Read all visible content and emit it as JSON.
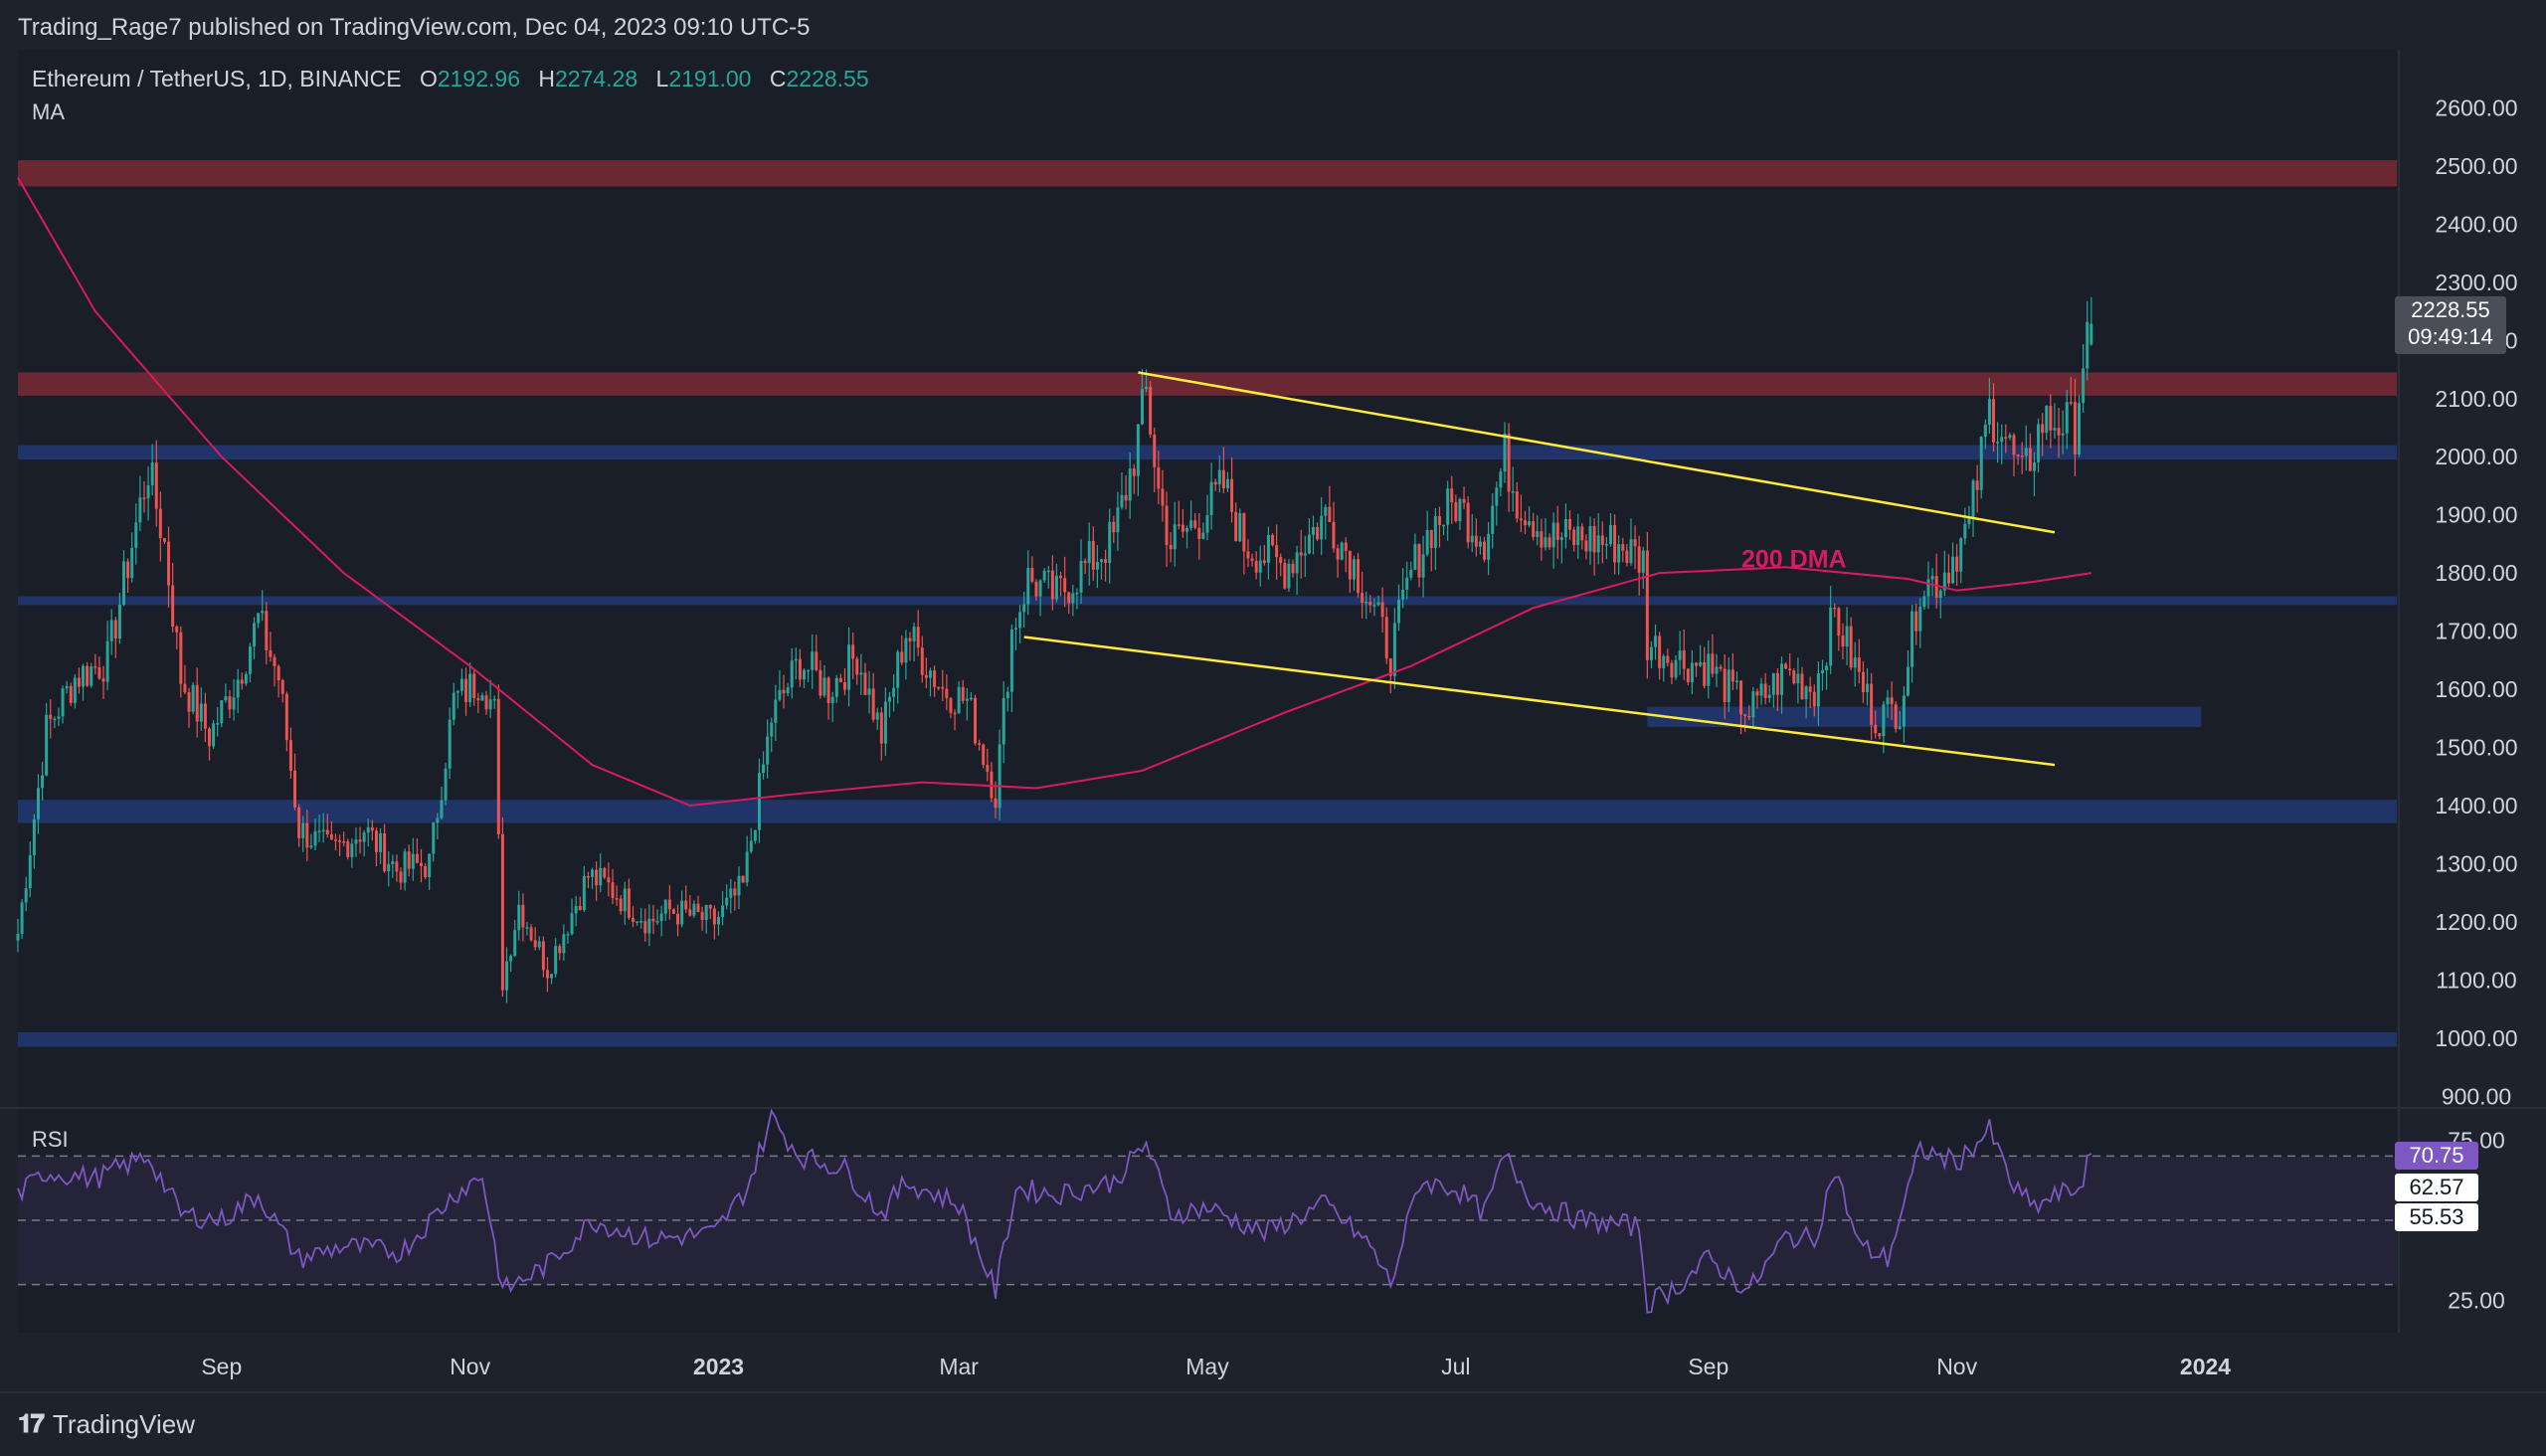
{
  "header": {
    "publisher": "Trading_Rage7 published on TradingView.com, Dec 04, 2023 09:10 UTC-5",
    "symbol": "Ethereum / TetherUS, 1D, BINANCE",
    "o_label": "O",
    "o_value": "2192.96",
    "h_label": "H",
    "h_value": "2274.28",
    "l_label": "L",
    "l_value": "2191.00",
    "c_label": "C",
    "c_value": "2228.55",
    "indicator": "MA"
  },
  "price_tag": {
    "price": "2228.55",
    "countdown": "09:49:14"
  },
  "annotation": {
    "label": "200 DMA"
  },
  "rsi": {
    "label": "RSI",
    "value": "70.75",
    "ma": "62.57",
    "other": "55.53"
  },
  "footer": {
    "brand": "TradingView",
    "logo": "tradingview-logo-icon"
  },
  "colors": {
    "background": "#1e222d",
    "up": "#26a69a",
    "down": "#ef5350",
    "ma": "#d81b60",
    "trendline": "#ffeb3b",
    "resistance_zone": "#7a2a35",
    "support_zone": "#22366a",
    "rsi_line": "#7e57c2"
  },
  "chart_data": [
    {
      "type": "candlestick",
      "title": "Ethereum / TetherUS, 1D, BINANCE",
      "y_axis_ticks": [
        2600,
        2500,
        2400,
        2300,
        2200,
        2100,
        2000,
        1900,
        1800,
        1700,
        1600,
        1500,
        1400,
        1300,
        1200,
        1100,
        1000,
        900
      ],
      "y_axis_tick_labels": [
        "2600.00",
        "2500.00",
        "2400.00",
        "2300.00",
        "2200.00",
        "2100.00",
        "2000.00",
        "1900.00",
        "1800.00",
        "1700.00",
        "1600.00",
        "1500.00",
        "1400.00",
        "1300.00",
        "1200.00",
        "1100.00",
        "1000.00",
        "900.00"
      ],
      "ylim": [
        880,
        2700
      ],
      "x_axis_ticks": [
        {
          "date": "2022-09-01",
          "label": "Sep"
        },
        {
          "date": "2022-11-01",
          "label": "Nov"
        },
        {
          "date": "2023-01-01",
          "label": "2023"
        },
        {
          "date": "2023-03-01",
          "label": "Mar"
        },
        {
          "date": "2023-05-01",
          "label": "May"
        },
        {
          "date": "2023-07-01",
          "label": "Jul"
        },
        {
          "date": "2023-09-01",
          "label": "Sep"
        },
        {
          "date": "2023-11-01",
          "label": "Nov"
        },
        {
          "date": "2024-01-01",
          "label": "2024"
        }
      ],
      "xlim": [
        "2022-07-13",
        "2024-02-17"
      ],
      "close_anchors": [
        [
          "2022-07-13",
          1180
        ],
        [
          "2022-07-20",
          1530
        ],
        [
          "2022-07-27",
          1620
        ],
        [
          "2022-08-04",
          1650
        ],
        [
          "2022-08-10",
          1850
        ],
        [
          "2022-08-14",
          1980
        ],
        [
          "2022-08-18",
          1850
        ],
        [
          "2022-08-22",
          1620
        ],
        [
          "2022-08-29",
          1520
        ],
        [
          "2022-09-05",
          1620
        ],
        [
          "2022-09-10",
          1720
        ],
        [
          "2022-09-15",
          1620
        ],
        [
          "2022-09-20",
          1360
        ],
        [
          "2022-09-28",
          1320
        ],
        [
          "2022-10-06",
          1360
        ],
        [
          "2022-10-14",
          1290
        ],
        [
          "2022-10-22",
          1300
        ],
        [
          "2022-10-28",
          1580
        ],
        [
          "2022-11-04",
          1620
        ],
        [
          "2022-11-07",
          1560
        ],
        [
          "2022-11-09",
          1100
        ],
        [
          "2022-11-13",
          1230
        ],
        [
          "2022-11-20",
          1120
        ],
        [
          "2022-11-30",
          1280
        ],
        [
          "2022-12-05",
          1260
        ],
        [
          "2022-12-15",
          1200
        ],
        [
          "2022-12-20",
          1220
        ],
        [
          "2022-12-31",
          1200
        ],
        [
          "2023-01-07",
          1260
        ],
        [
          "2023-01-14",
          1550
        ],
        [
          "2023-01-21",
          1650
        ],
        [
          "2023-01-28",
          1600
        ],
        [
          "2023-02-04",
          1660
        ],
        [
          "2023-02-10",
          1520
        ],
        [
          "2023-02-16",
          1700
        ],
        [
          "2023-02-25",
          1600
        ],
        [
          "2023-03-03",
          1580
        ],
        [
          "2023-03-10",
          1420
        ],
        [
          "2023-03-14",
          1700
        ],
        [
          "2023-03-18",
          1790
        ],
        [
          "2023-03-25",
          1760
        ],
        [
          "2023-04-01",
          1810
        ],
        [
          "2023-04-08",
          1860
        ],
        [
          "2023-04-13",
          2000
        ],
        [
          "2023-04-16",
          2110
        ],
        [
          "2023-04-19",
          1940
        ],
        [
          "2023-04-22",
          1850
        ],
        [
          "2023-04-30",
          1900
        ],
        [
          "2023-05-05",
          1950
        ],
        [
          "2023-05-10",
          1850
        ],
        [
          "2023-05-20",
          1810
        ],
        [
          "2023-05-30",
          1900
        ],
        [
          "2023-06-05",
          1830
        ],
        [
          "2023-06-10",
          1750
        ],
        [
          "2023-06-15",
          1660
        ],
        [
          "2023-06-20",
          1800
        ],
        [
          "2023-06-25",
          1880
        ],
        [
          "2023-07-01",
          1920
        ],
        [
          "2023-07-08",
          1860
        ],
        [
          "2023-07-13",
          2000
        ],
        [
          "2023-07-16",
          1930
        ],
        [
          "2023-07-24",
          1860
        ],
        [
          "2023-07-31",
          1860
        ],
        [
          "2023-08-10",
          1850
        ],
        [
          "2023-08-16",
          1820
        ],
        [
          "2023-08-17",
          1680
        ],
        [
          "2023-08-25",
          1650
        ],
        [
          "2023-09-01",
          1640
        ],
        [
          "2023-09-11",
          1560
        ],
        [
          "2023-09-20",
          1630
        ],
        [
          "2023-09-27",
          1600
        ],
        [
          "2023-10-02",
          1730
        ],
        [
          "2023-10-08",
          1620
        ],
        [
          "2023-10-12",
          1550
        ],
        [
          "2023-10-18",
          1570
        ],
        [
          "2023-10-23",
          1780
        ],
        [
          "2023-10-28",
          1790
        ],
        [
          "2023-11-04",
          1880
        ],
        [
          "2023-11-09",
          2080
        ],
        [
          "2023-11-12",
          2050
        ],
        [
          "2023-11-17",
          1960
        ],
        [
          "2023-11-22",
          2060
        ],
        [
          "2023-11-26",
          2060
        ],
        [
          "2023-11-30",
          2050
        ],
        [
          "2023-12-02",
          2170
        ],
        [
          "2023-12-04",
          2228.55
        ]
      ],
      "last": {
        "date": "2023-12-04",
        "open": 2192.96,
        "high": 2274.28,
        "low": 2191.0,
        "close": 2228.55
      }
    },
    {
      "type": "line",
      "name": "200 DMA",
      "values": [
        [
          "2022-07-13",
          2480
        ],
        [
          "2022-08-01",
          2250
        ],
        [
          "2022-09-01",
          2000
        ],
        [
          "2022-10-01",
          1800
        ],
        [
          "2022-11-01",
          1640
        ],
        [
          "2022-12-01",
          1470
        ],
        [
          "2022-12-25",
          1400
        ],
        [
          "2023-01-20",
          1420
        ],
        [
          "2023-02-20",
          1440
        ],
        [
          "2023-03-20",
          1430
        ],
        [
          "2023-04-15",
          1460
        ],
        [
          "2023-05-20",
          1560
        ],
        [
          "2023-06-20",
          1640
        ],
        [
          "2023-07-20",
          1740
        ],
        [
          "2023-08-20",
          1800
        ],
        [
          "2023-09-20",
          1810
        ],
        [
          "2023-10-20",
          1790
        ],
        [
          "2023-11-01",
          1770
        ],
        [
          "2023-11-20",
          1785
        ],
        [
          "2023-12-04",
          1800
        ]
      ]
    },
    {
      "type": "zones",
      "resistance": [
        [
          2465,
          2510
        ],
        [
          2105,
          2145
        ]
      ],
      "support": [
        [
          1995,
          2020
        ],
        [
          1745,
          1760
        ],
        [
          1370,
          1410
        ],
        [
          985,
          1010
        ],
        [
          1535,
          1570,
          "2023-08-17",
          "2023-12-31"
        ]
      ]
    },
    {
      "type": "trendlines",
      "lines": [
        [
          [
            "2023-04-14",
            2145
          ],
          [
            "2023-11-25",
            1870
          ]
        ],
        [
          [
            "2023-03-17",
            1690
          ],
          [
            "2023-11-25",
            1470
          ]
        ]
      ]
    },
    {
      "type": "line",
      "name": "RSI",
      "ylim": [
        15,
        85
      ],
      "levels": [
        70,
        50,
        30
      ],
      "axis_labels": [
        {
          "value": 75,
          "label": "75.00"
        },
        {
          "value": 25,
          "label": "25.00"
        }
      ],
      "values": [
        [
          "2022-07-13",
          58
        ],
        [
          "2022-07-20",
          65
        ],
        [
          "2022-08-01",
          63
        ],
        [
          "2022-08-14",
          70
        ],
        [
          "2022-08-22",
          52
        ],
        [
          "2022-09-01",
          50
        ],
        [
          "2022-09-10",
          58
        ],
        [
          "2022-09-20",
          38
        ],
        [
          "2022-10-01",
          42
        ],
        [
          "2022-10-15",
          40
        ],
        [
          "2022-10-28",
          58
        ],
        [
          "2022-11-04",
          64
        ],
        [
          "2022-11-09",
          28
        ],
        [
          "2022-11-20",
          36
        ],
        [
          "2022-12-01",
          50
        ],
        [
          "2022-12-15",
          44
        ],
        [
          "2022-12-31",
          46
        ],
        [
          "2023-01-08",
          60
        ],
        [
          "2023-01-14",
          82
        ],
        [
          "2023-01-21",
          70
        ],
        [
          "2023-02-01",
          66
        ],
        [
          "2023-02-10",
          52
        ],
        [
          "2023-02-16",
          62
        ],
        [
          "2023-03-01",
          55
        ],
        [
          "2023-03-10",
          28
        ],
        [
          "2023-03-15",
          60
        ],
        [
          "2023-03-25",
          58
        ],
        [
          "2023-04-08",
          62
        ],
        [
          "2023-04-16",
          74
        ],
        [
          "2023-04-22",
          52
        ],
        [
          "2023-05-01",
          54
        ],
        [
          "2023-05-15",
          46
        ],
        [
          "2023-05-30",
          55
        ],
        [
          "2023-06-10",
          42
        ],
        [
          "2023-06-15",
          30
        ],
        [
          "2023-06-22",
          62
        ],
        [
          "2023-07-01",
          60
        ],
        [
          "2023-07-08",
          52
        ],
        [
          "2023-07-13",
          70
        ],
        [
          "2023-07-20",
          56
        ],
        [
          "2023-08-01",
          50
        ],
        [
          "2023-08-15",
          48
        ],
        [
          "2023-08-17",
          24
        ],
        [
          "2023-08-25",
          30
        ],
        [
          "2023-09-01",
          38
        ],
        [
          "2023-09-11",
          28
        ],
        [
          "2023-09-20",
          45
        ],
        [
          "2023-09-27",
          44
        ],
        [
          "2023-10-02",
          66
        ],
        [
          "2023-10-08",
          42
        ],
        [
          "2023-10-15",
          38
        ],
        [
          "2023-10-23",
          72
        ],
        [
          "2023-11-01",
          68
        ],
        [
          "2023-11-09",
          78
        ],
        [
          "2023-11-15",
          60
        ],
        [
          "2023-11-20",
          54
        ],
        [
          "2023-11-26",
          58
        ],
        [
          "2023-12-01",
          60
        ],
        [
          "2023-12-04",
          70.75
        ]
      ]
    }
  ]
}
